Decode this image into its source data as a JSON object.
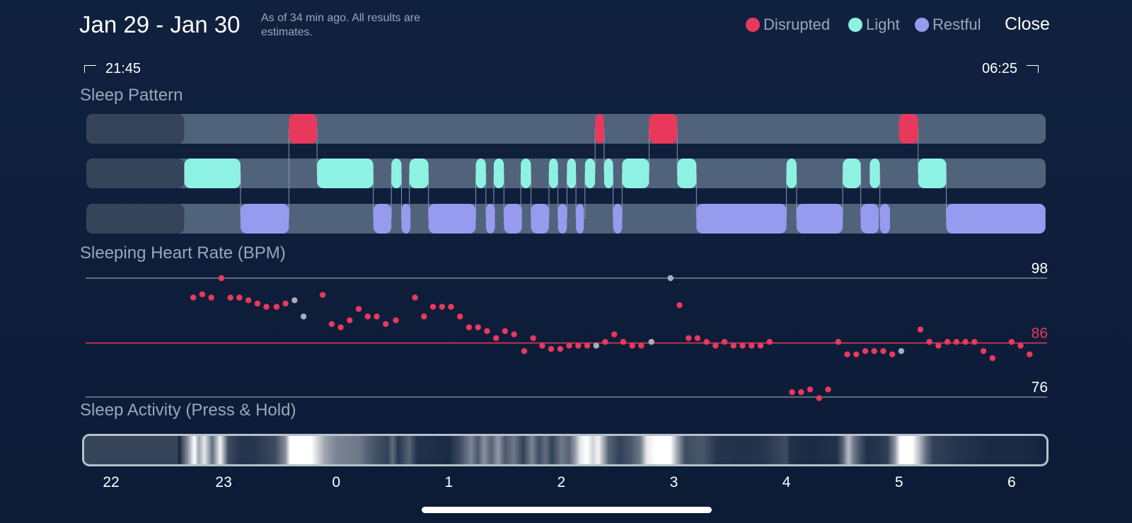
{
  "header": {
    "title": "Jan 29 - Jan 30",
    "note": "As of 34 min ago. All results are estimates.",
    "close_label": "Close"
  },
  "legend": [
    {
      "label": "Disrupted",
      "color": "#e8395d"
    },
    {
      "label": "Light",
      "color": "#8ef2e2"
    },
    {
      "label": "Restful",
      "color": "#969bf0"
    }
  ],
  "time_range": {
    "start": "21:45",
    "end": "06:25"
  },
  "sections": {
    "sleep_pattern": "Sleep Pattern",
    "heart_rate": "Sleeping Heart Rate (BPM)",
    "activity": "Sleep Activity (Press & Hold)"
  },
  "colors": {
    "disrupted": "#e8395d",
    "light": "#8ef2e2",
    "restful": "#969bf0",
    "track": "#51627b",
    "track_inactive": "#364459",
    "grid": "#8f99a8",
    "muted_point": "#a9aeb6",
    "accent_line": "#e8395d"
  },
  "chart_data": [
    {
      "type": "timeline",
      "title": "Sleep Pattern",
      "x_unit": "hours since midnight",
      "xlim": [
        -2.0,
        6.42
      ],
      "untracked_until": -1.35,
      "lanes": [
        {
          "name": "Disrupted",
          "segments": [
            [
              -0.42,
              -0.17
            ],
            [
              2.3,
              2.38
            ],
            [
              2.78,
              3.03
            ],
            [
              5.0,
              5.17
            ]
          ]
        },
        {
          "name": "Light",
          "segments": [
            [
              -1.35,
              -0.85
            ],
            [
              -0.17,
              0.33
            ],
            [
              0.49,
              0.58
            ],
            [
              0.65,
              0.82
            ],
            [
              1.24,
              1.33
            ],
            [
              1.4,
              1.49
            ],
            [
              1.64,
              1.73
            ],
            [
              1.89,
              1.97
            ],
            [
              2.05,
              2.13
            ],
            [
              2.21,
              2.3
            ],
            [
              2.38,
              2.46
            ],
            [
              2.54,
              2.78
            ],
            [
              3.03,
              3.2
            ],
            [
              4.0,
              4.09
            ],
            [
              4.5,
              4.66
            ],
            [
              4.74,
              4.83
            ],
            [
              5.17,
              5.42
            ]
          ]
        },
        {
          "name": "Restful",
          "segments": [
            [
              -0.85,
              -0.42
            ],
            [
              0.33,
              0.49
            ],
            [
              0.58,
              0.66
            ],
            [
              0.82,
              1.24
            ],
            [
              1.33,
              1.41
            ],
            [
              1.49,
              1.65
            ],
            [
              1.73,
              1.89
            ],
            [
              1.97,
              2.05
            ],
            [
              2.13,
              2.2
            ],
            [
              2.46,
              2.54
            ],
            [
              3.2,
              4.0
            ],
            [
              4.09,
              4.5
            ],
            [
              4.66,
              4.82
            ],
            [
              4.83,
              4.92
            ],
            [
              5.42,
              6.3
            ]
          ]
        }
      ]
    },
    {
      "type": "scatter",
      "title": "Sleeping Heart Rate (BPM)",
      "x_unit": "hours since midnight",
      "xlim": [
        -2.0,
        6.42
      ],
      "ylim": [
        76,
        98
      ],
      "reference_lines": [
        {
          "value": 98,
          "label": "98"
        },
        {
          "value": 86,
          "label": "86",
          "highlight": true
        },
        {
          "value": 76,
          "label": "76"
        }
      ],
      "points": [
        [
          -1.27,
          94.4
        ],
        [
          -1.19,
          95
        ],
        [
          -1.11,
          94.4
        ],
        [
          -1.02,
          98
        ],
        [
          -0.94,
          94.4
        ],
        [
          -0.86,
          94.4
        ],
        [
          -0.78,
          93.9
        ],
        [
          -0.7,
          93.3
        ],
        [
          -0.62,
          92.7
        ],
        [
          -0.53,
          92.7
        ],
        [
          -0.45,
          93.3
        ],
        [
          -0.37,
          93.9,
          "muted"
        ],
        [
          -0.29,
          90.9,
          "muted"
        ],
        [
          -0.12,
          94.9
        ],
        [
          -0.04,
          89.5
        ],
        [
          0.04,
          88.9
        ],
        [
          0.12,
          90.2
        ],
        [
          0.2,
          92.3
        ],
        [
          0.28,
          90.9
        ],
        [
          0.36,
          90.9
        ],
        [
          0.44,
          89.5
        ],
        [
          0.53,
          90.2
        ],
        [
          0.7,
          94.4
        ],
        [
          0.78,
          90.9
        ],
        [
          0.86,
          92.7
        ],
        [
          0.94,
          92.7
        ],
        [
          1.02,
          92.7
        ],
        [
          1.1,
          90.9
        ],
        [
          1.18,
          88.9
        ],
        [
          1.26,
          88.9
        ],
        [
          1.34,
          88.2
        ],
        [
          1.42,
          86.9
        ],
        [
          1.5,
          88.2
        ],
        [
          1.58,
          87.6
        ],
        [
          1.67,
          84.5
        ],
        [
          1.75,
          86.9
        ],
        [
          1.83,
          85.5
        ],
        [
          1.91,
          84.9
        ],
        [
          1.99,
          84.9
        ],
        [
          2.07,
          85.5
        ],
        [
          2.15,
          85.5
        ],
        [
          2.23,
          85.5
        ],
        [
          2.31,
          85.5,
          "muted"
        ],
        [
          2.39,
          86.2
        ],
        [
          2.47,
          87.6
        ],
        [
          2.55,
          86.2
        ],
        [
          2.63,
          85.5
        ],
        [
          2.71,
          85.5
        ],
        [
          2.8,
          86.2,
          "muted"
        ],
        [
          2.97,
          98,
          "muted"
        ],
        [
          3.05,
          93.0
        ],
        [
          3.13,
          86.9
        ],
        [
          3.21,
          86.9
        ],
        [
          3.29,
          86.2
        ],
        [
          3.37,
          85.5
        ],
        [
          3.45,
          86.2
        ],
        [
          3.53,
          85.5
        ],
        [
          3.61,
          85.5
        ],
        [
          3.69,
          85.5
        ],
        [
          3.77,
          85.5
        ],
        [
          3.85,
          86.2
        ],
        [
          4.05,
          76.9
        ],
        [
          4.13,
          76.9
        ],
        [
          4.21,
          77.4
        ],
        [
          4.29,
          75.8
        ],
        [
          4.37,
          77.4
        ],
        [
          4.46,
          86.2
        ],
        [
          4.54,
          83.9
        ],
        [
          4.62,
          83.9
        ],
        [
          4.7,
          84.5
        ],
        [
          4.78,
          84.5
        ],
        [
          4.86,
          84.5
        ],
        [
          4.94,
          83.9
        ],
        [
          5.02,
          84.5,
          "muted"
        ],
        [
          5.19,
          88.5
        ],
        [
          5.27,
          86.2
        ],
        [
          5.35,
          85.5
        ],
        [
          5.43,
          86.2
        ],
        [
          5.51,
          86.2
        ],
        [
          5.59,
          86.2
        ],
        [
          5.67,
          86.2
        ],
        [
          5.75,
          84.5
        ],
        [
          5.83,
          83.2
        ],
        [
          6.0,
          86.2
        ],
        [
          6.08,
          85.5
        ],
        [
          6.16,
          83.9
        ]
      ]
    },
    {
      "type": "heatmap",
      "title": "Sleep Activity (Press & Hold)",
      "x_unit": "hours since midnight",
      "xlim": [
        -2.0,
        6.42
      ],
      "x_ticks": [
        "22",
        "23",
        "0",
        "1",
        "2",
        "3",
        "4",
        "5",
        "6"
      ],
      "x_tick_values": [
        -2,
        -1,
        0,
        1,
        2,
        3,
        4,
        5,
        6
      ],
      "activity_stops": [
        [
          -1.4,
          0
        ],
        [
          -1.32,
          0.5
        ],
        [
          -1.26,
          1
        ],
        [
          -1.22,
          0.6
        ],
        [
          -1.17,
          0.9
        ],
        [
          -1.1,
          0.35
        ],
        [
          -1.03,
          0.95
        ],
        [
          -0.96,
          0.2
        ],
        [
          -0.86,
          0.1
        ],
        [
          -0.74,
          0.1
        ],
        [
          -0.63,
          0.15
        ],
        [
          -0.54,
          0.2
        ],
        [
          -0.45,
          0.5
        ],
        [
          -0.41,
          1
        ],
        [
          -0.22,
          1
        ],
        [
          -0.1,
          0.6
        ],
        [
          0,
          0.45
        ],
        [
          0.2,
          0.4
        ],
        [
          0.32,
          0.25
        ],
        [
          0.46,
          0.15
        ],
        [
          0.5,
          0.35
        ],
        [
          0.55,
          0.1
        ],
        [
          0.65,
          0.3
        ],
        [
          0.72,
          0.08
        ],
        [
          1.0,
          0.05
        ],
        [
          1.1,
          0.2
        ],
        [
          1.2,
          0.45
        ],
        [
          1.26,
          0.25
        ],
        [
          1.31,
          0.5
        ],
        [
          1.38,
          0.3
        ],
        [
          1.44,
          0.55
        ],
        [
          1.5,
          0.25
        ],
        [
          1.58,
          0.4
        ],
        [
          1.66,
          0.15
        ],
        [
          1.74,
          0.45
        ],
        [
          1.8,
          0.2
        ],
        [
          1.86,
          0.35
        ],
        [
          1.92,
          0.15
        ],
        [
          2.0,
          0.4
        ],
        [
          2.07,
          0.3
        ],
        [
          2.12,
          0.55
        ],
        [
          2.17,
          0.9
        ],
        [
          2.23,
          1
        ],
        [
          2.28,
          0.8
        ],
        [
          2.33,
          0.95
        ],
        [
          2.42,
          0.3
        ],
        [
          2.52,
          0.15
        ],
        [
          2.62,
          0.25
        ],
        [
          2.7,
          0.4
        ],
        [
          2.76,
          0.9
        ],
        [
          2.83,
          1
        ],
        [
          2.97,
          1
        ],
        [
          3.03,
          0.6
        ],
        [
          3.1,
          0.2
        ],
        [
          3.25,
          0.25
        ],
        [
          3.38,
          0.1
        ],
        [
          3.6,
          0.08
        ],
        [
          3.8,
          0.1
        ],
        [
          4.0,
          0.2
        ],
        [
          4.03,
          0.08
        ],
        [
          4.2,
          0.05
        ],
        [
          4.45,
          0.08
        ],
        [
          4.5,
          0.3
        ],
        [
          4.55,
          0.7
        ],
        [
          4.6,
          0.4
        ],
        [
          4.66,
          0.2
        ],
        [
          4.72,
          0.08
        ],
        [
          4.82,
          0.1
        ],
        [
          4.9,
          0.15
        ],
        [
          4.96,
          0.5
        ],
        [
          5.01,
          1
        ],
        [
          5.12,
          1
        ],
        [
          5.18,
          0.7
        ],
        [
          5.24,
          0.35
        ],
        [
          5.3,
          0.15
        ],
        [
          5.5,
          0.1
        ],
        [
          5.8,
          0.05
        ],
        [
          6.1,
          0.05
        ],
        [
          6.3,
          0.02
        ]
      ]
    }
  ]
}
